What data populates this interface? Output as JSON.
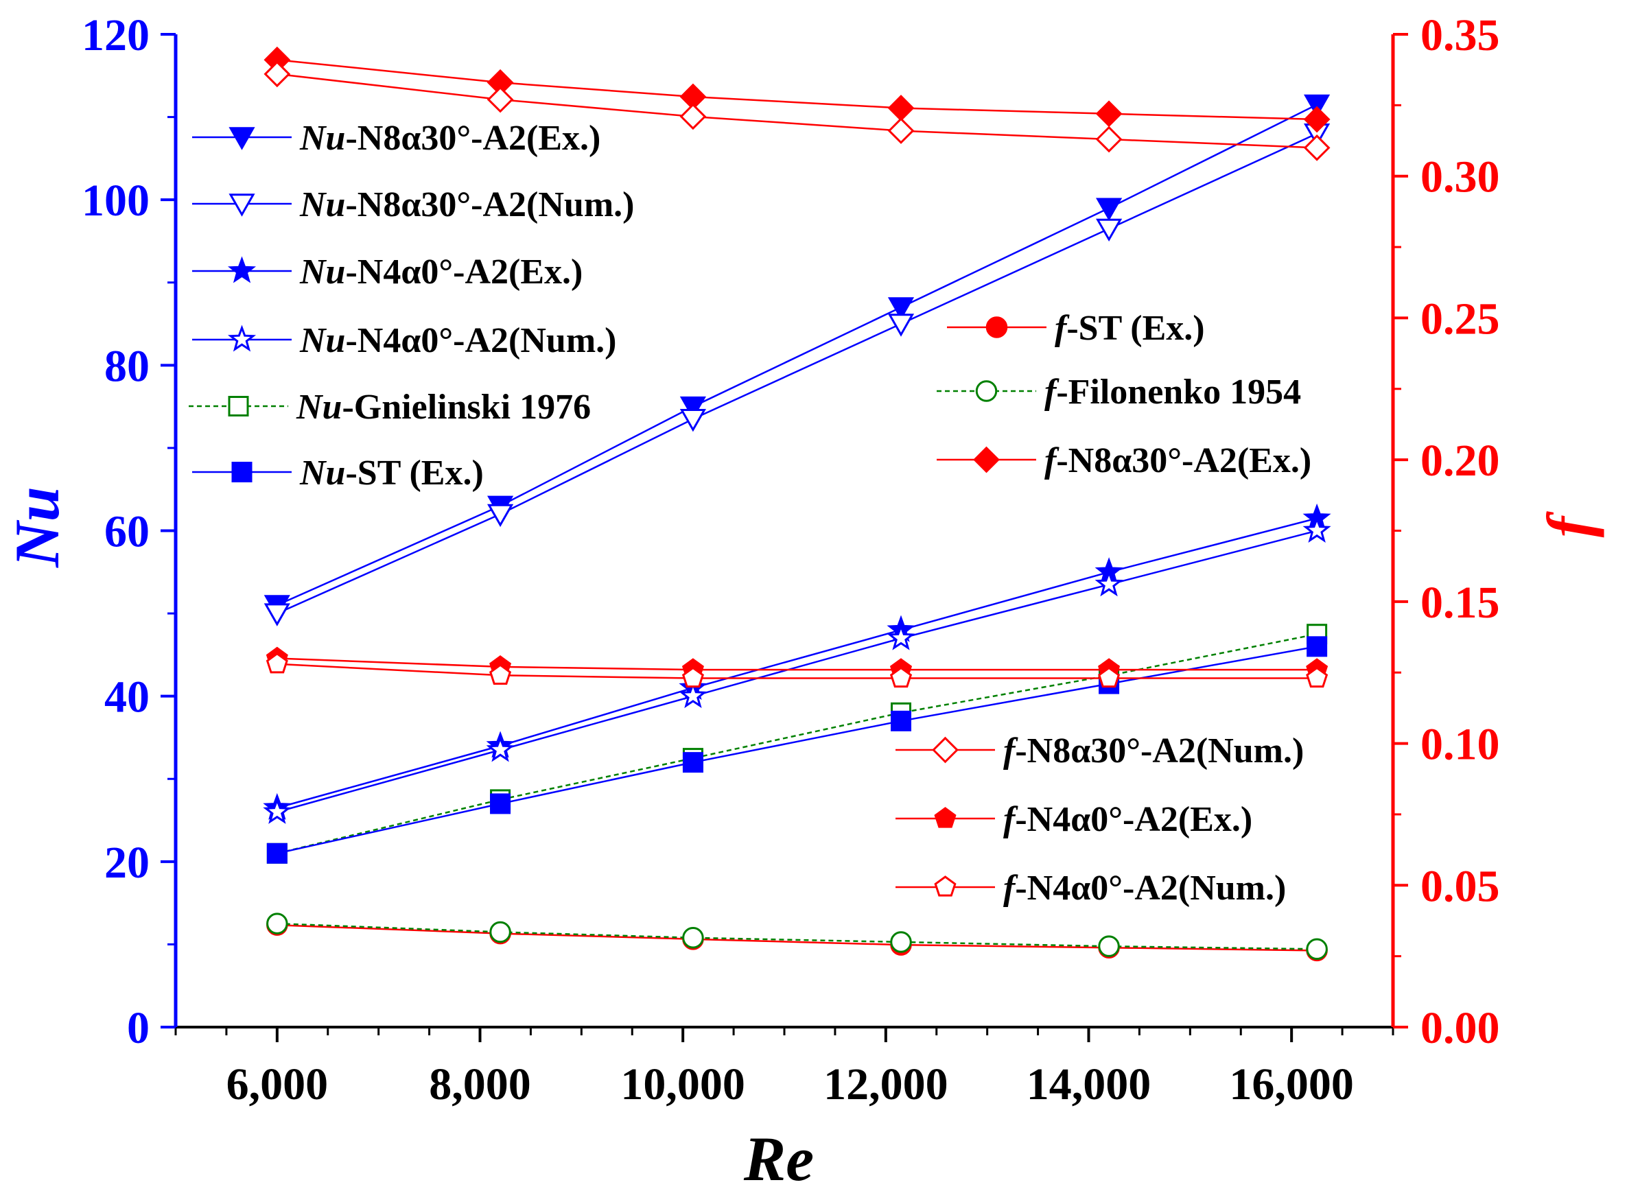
{
  "chart_data": {
    "type": "line",
    "xlabel": "Re",
    "ylabel_left": "Nu",
    "ylabel_right": "f",
    "xlim": [
      5000,
      17000
    ],
    "ylim_left": [
      0,
      120
    ],
    "ylim_right": [
      0.0,
      0.35
    ],
    "x_ticks": [
      6000,
      8000,
      10000,
      12000,
      14000,
      16000
    ],
    "x_tick_labels": [
      "6,000",
      "8,000",
      "10,000",
      "12,000",
      "14,000",
      "16,000"
    ],
    "y_left_ticks": [
      0,
      20,
      40,
      60,
      80,
      100,
      120
    ],
    "y_left_tick_labels": [
      "0",
      "20",
      "40",
      "60",
      "80",
      "100",
      "120"
    ],
    "y_right_ticks": [
      0.0,
      0.05,
      0.1,
      0.15,
      0.2,
      0.25,
      0.3,
      0.35
    ],
    "y_right_tick_labels": [
      "0.00",
      "0.05",
      "0.10",
      "0.15",
      "0.20",
      "0.25",
      "0.30",
      "0.35"
    ],
    "x": [
      6000,
      8200,
      10100,
      12150,
      14200,
      16250
    ],
    "colors": {
      "left_axis": "#0000ff",
      "right_axis": "#ff0000",
      "correlation": "#008000"
    },
    "grid": false,
    "series": [
      {
        "id": "nu-n8-ex",
        "prefix": "Nu",
        "suffix": "-N8α30°-A2(Ex.)",
        "axis": "left",
        "marker": "triangle-down",
        "filled": true,
        "color": "#0000ff",
        "dashed": false,
        "values": [
          51.0,
          63.0,
          75.0,
          87.0,
          99.0,
          111.5
        ]
      },
      {
        "id": "nu-n8-num",
        "prefix": "Nu",
        "suffix": "-N8α30°-A2(Num.)",
        "axis": "left",
        "marker": "triangle-down",
        "filled": false,
        "color": "#0000ff",
        "dashed": false,
        "values": [
          50.0,
          62.0,
          73.5,
          85.0,
          96.5,
          108.0
        ]
      },
      {
        "id": "nu-n4-ex",
        "prefix": "Nu",
        "suffix": "-N4α0°-A2(Ex.)",
        "axis": "left",
        "marker": "star",
        "filled": true,
        "color": "#0000ff",
        "dashed": false,
        "values": [
          26.5,
          34.0,
          41.0,
          48.0,
          55.0,
          61.5
        ]
      },
      {
        "id": "nu-n4-num",
        "prefix": "Nu",
        "suffix": "-N4α0°-A2(Num.)",
        "axis": "left",
        "marker": "star",
        "filled": false,
        "color": "#0000ff",
        "dashed": false,
        "values": [
          26.0,
          33.5,
          40.0,
          47.0,
          53.5,
          60.0
        ]
      },
      {
        "id": "nu-gnielinski",
        "prefix": "Nu",
        "suffix": "-Gnielinski 1976",
        "axis": "left",
        "marker": "square",
        "filled": false,
        "color": "#008000",
        "dashed": true,
        "values": [
          21.0,
          27.5,
          32.5,
          38.0,
          42.5,
          47.5
        ]
      },
      {
        "id": "nu-st-ex",
        "prefix": "Nu",
        "suffix": "-ST (Ex.)",
        "axis": "left",
        "marker": "square",
        "filled": true,
        "color": "#0000ff",
        "dashed": false,
        "values": [
          21.0,
          27.0,
          32.0,
          37.0,
          41.5,
          46.0
        ]
      },
      {
        "id": "f-st-ex",
        "prefix": "f",
        "suffix": "-ST (Ex.)",
        "axis": "right",
        "marker": "circle",
        "filled": true,
        "color": "#ff0000",
        "dashed": false,
        "values": [
          0.036,
          0.033,
          0.031,
          0.029,
          0.028,
          0.027
        ]
      },
      {
        "id": "f-filonenko",
        "prefix": "f",
        "suffix": "-Filonenko 1954",
        "axis": "right",
        "marker": "circle",
        "filled": false,
        "color": "#008000",
        "dashed": true,
        "values": [
          0.0365,
          0.0335,
          0.0315,
          0.03,
          0.0285,
          0.0275
        ]
      },
      {
        "id": "f-n8-ex",
        "prefix": "f",
        "suffix": "-N8α30°-A2(Ex.)",
        "axis": "right",
        "marker": "diamond",
        "filled": true,
        "color": "#ff0000",
        "dashed": false,
        "values": [
          0.341,
          0.333,
          0.328,
          0.324,
          0.322,
          0.32
        ]
      },
      {
        "id": "f-n8-num",
        "prefix": "f",
        "suffix": "-N8α30°-A2(Num.)",
        "axis": "right",
        "marker": "diamond",
        "filled": false,
        "color": "#ff0000",
        "dashed": false,
        "values": [
          0.336,
          0.327,
          0.321,
          0.316,
          0.313,
          0.31
        ]
      },
      {
        "id": "f-n4-ex",
        "prefix": "f",
        "suffix": "-N4α0°-A2(Ex.)",
        "axis": "right",
        "marker": "pentagon",
        "filled": true,
        "color": "#ff0000",
        "dashed": false,
        "values": [
          0.13,
          0.127,
          0.126,
          0.126,
          0.126,
          0.126
        ]
      },
      {
        "id": "f-n4-num",
        "prefix": "f",
        "suffix": "-N4α0°-A2(Num.)",
        "axis": "right",
        "marker": "pentagon",
        "filled": false,
        "color": "#ff0000",
        "dashed": false,
        "values": [
          0.128,
          0.124,
          0.123,
          0.123,
          0.123,
          0.123
        ]
      }
    ]
  }
}
